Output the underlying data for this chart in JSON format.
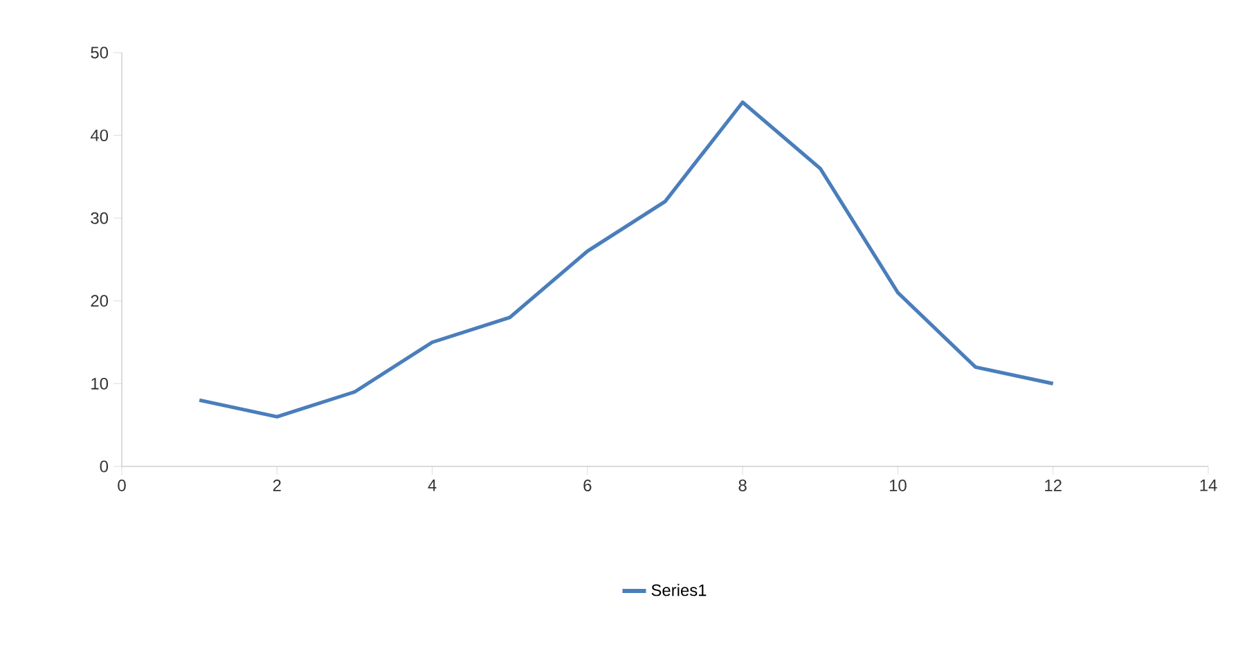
{
  "chart_data": {
    "type": "line",
    "x": [
      1,
      2,
      3,
      4,
      5,
      6,
      7,
      8,
      9,
      10,
      11,
      12
    ],
    "series": [
      {
        "name": "Series1",
        "color": "#4a7ebb",
        "values": [
          8,
          6,
          9,
          15,
          18,
          26,
          32,
          44,
          36,
          21,
          12,
          10
        ]
      }
    ],
    "xlim": [
      0,
      14
    ],
    "xticks": [
      0,
      2,
      4,
      6,
      8,
      10,
      12,
      14
    ],
    "ylim": [
      0,
      50
    ],
    "yticks": [
      0,
      10,
      20,
      30,
      40,
      50
    ],
    "grid": false,
    "legend": "bottom",
    "marker": "none",
    "line_style": "solid"
  }
}
